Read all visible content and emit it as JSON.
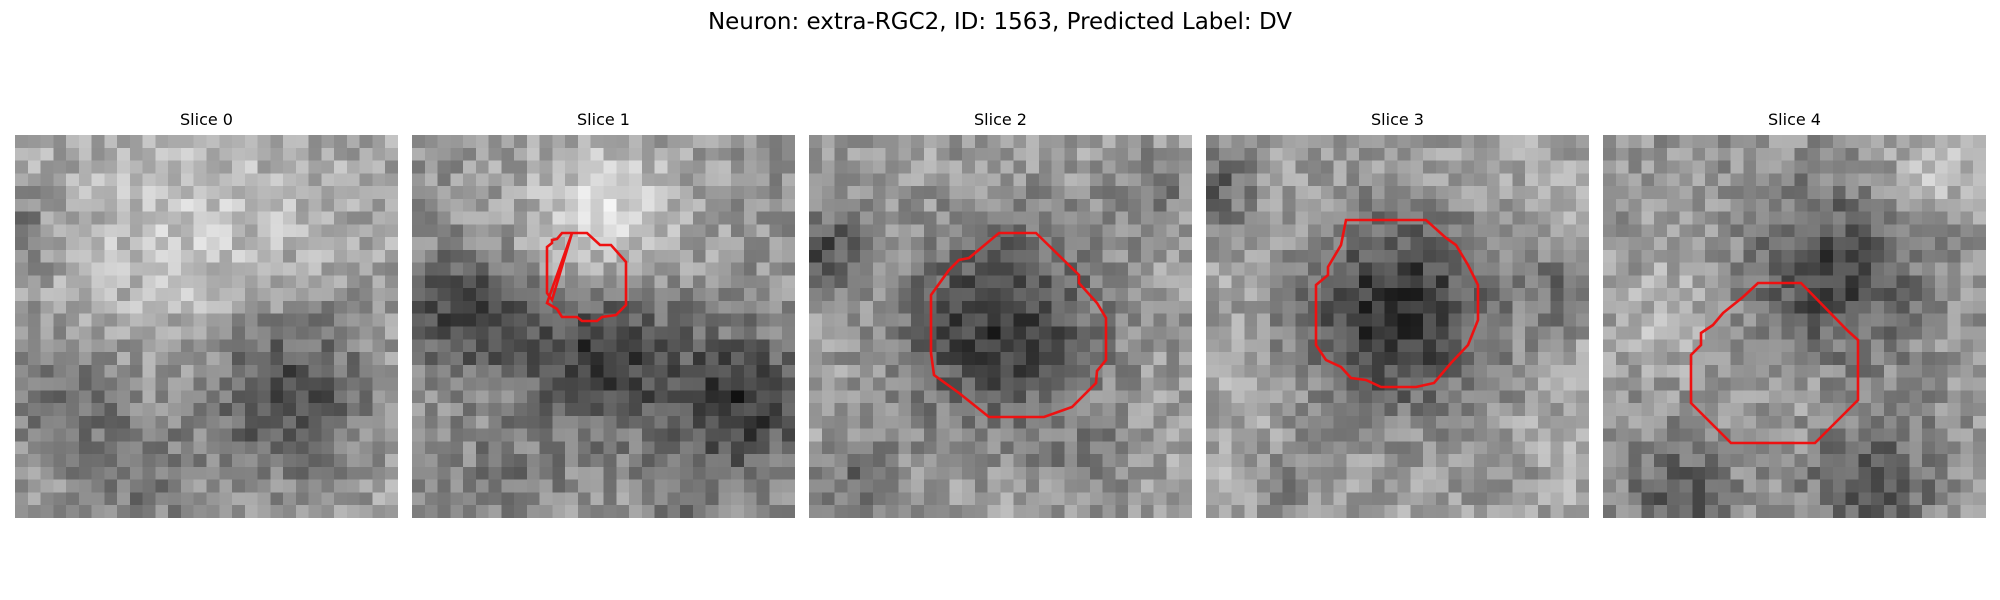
{
  "figure": {
    "title": "Neuron: extra-RGC2, ID: 1563, Predicted Label: DV"
  },
  "panels": [
    {
      "title": "Slice 0"
    },
    {
      "title": "Slice 1"
    },
    {
      "title": "Slice 2"
    },
    {
      "title": "Slice 3"
    },
    {
      "title": "Slice 4"
    }
  ],
  "colors": {
    "contour": "#ee1111",
    "colormap": "grayscale"
  }
}
